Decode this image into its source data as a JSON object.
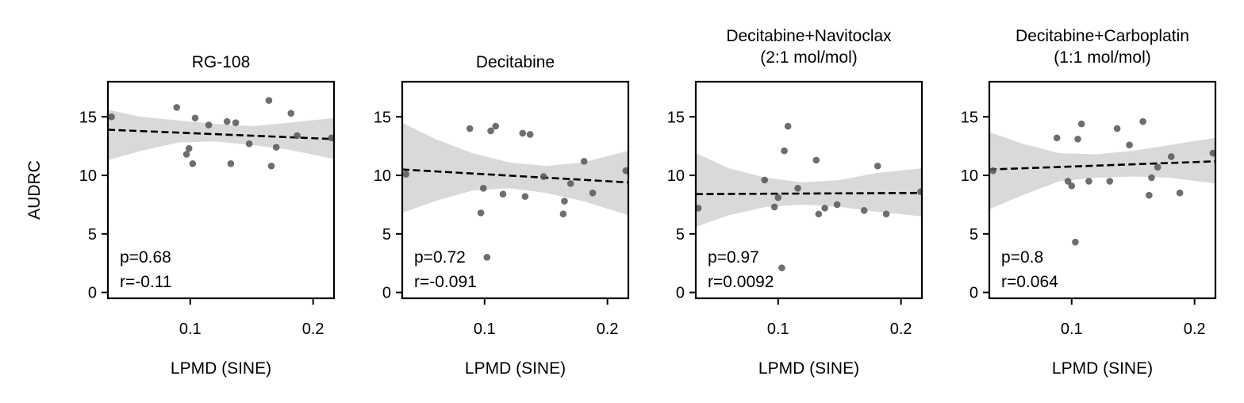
{
  "colors": {
    "points": "#555555",
    "band": "#d9d9d9",
    "fit_line": "#000000",
    "axes": "#000000"
  },
  "chart_data": [
    {
      "type": "scatter",
      "title": "RG-108",
      "xlabel": "LPMD (SINE)",
      "ylabel": "AUDRC",
      "xlim": [
        0.033,
        0.217
      ],
      "ylim": [
        -0.5,
        18
      ],
      "xticks": [
        {
          "v": 0.1,
          "label": "0.1"
        },
        {
          "v": 0.2,
          "label": "0.2"
        }
      ],
      "yticks": [
        {
          "v": 0,
          "label": "0"
        },
        {
          "v": 5,
          "label": "5"
        },
        {
          "v": 10,
          "label": "10"
        },
        {
          "v": 15,
          "label": "15"
        }
      ],
      "points": [
        {
          "x": 0.036,
          "y": 15.0
        },
        {
          "x": 0.089,
          "y": 15.8
        },
        {
          "x": 0.097,
          "y": 11.8
        },
        {
          "x": 0.099,
          "y": 12.3
        },
        {
          "x": 0.102,
          "y": 11.0
        },
        {
          "x": 0.104,
          "y": 14.9
        },
        {
          "x": 0.115,
          "y": 14.3
        },
        {
          "x": 0.13,
          "y": 14.6
        },
        {
          "x": 0.133,
          "y": 11.0
        },
        {
          "x": 0.137,
          "y": 14.5
        },
        {
          "x": 0.148,
          "y": 12.7
        },
        {
          "x": 0.164,
          "y": 16.4
        },
        {
          "x": 0.166,
          "y": 10.8
        },
        {
          "x": 0.17,
          "y": 12.4
        },
        {
          "x": 0.182,
          "y": 15.3
        },
        {
          "x": 0.187,
          "y": 13.4
        },
        {
          "x": 0.215,
          "y": 13.2
        }
      ],
      "fit": {
        "x0": 0.033,
        "y0": 13.9,
        "x1": 0.217,
        "y1": 13.1
      },
      "band": [
        {
          "x": 0.033,
          "lo": 11.3,
          "hi": 15.6
        },
        {
          "x": 0.06,
          "lo": 12.1,
          "hi": 15.0
        },
        {
          "x": 0.09,
          "lo": 12.8,
          "hi": 14.7
        },
        {
          "x": 0.12,
          "lo": 12.9,
          "hi": 14.4
        },
        {
          "x": 0.15,
          "lo": 12.6,
          "hi": 14.2
        },
        {
          "x": 0.18,
          "lo": 12.2,
          "hi": 14.5
        },
        {
          "x": 0.217,
          "lo": 11.4,
          "hi": 14.9
        }
      ],
      "p": "p=0.68",
      "r": "r=-0.11"
    },
    {
      "type": "scatter",
      "title": "Decitabine",
      "xlabel": "LPMD (SINE)",
      "ylabel": "",
      "xlim": [
        0.033,
        0.217
      ],
      "ylim": [
        -0.5,
        18
      ],
      "xticks": [
        {
          "v": 0.1,
          "label": "0.1"
        },
        {
          "v": 0.2,
          "label": "0.2"
        }
      ],
      "yticks": [
        {
          "v": 0,
          "label": "0"
        },
        {
          "v": 5,
          "label": "5"
        },
        {
          "v": 10,
          "label": "10"
        },
        {
          "v": 15,
          "label": "15"
        }
      ],
      "points": [
        {
          "x": 0.036,
          "y": 10.1
        },
        {
          "x": 0.088,
          "y": 14.0
        },
        {
          "x": 0.097,
          "y": 6.8
        },
        {
          "x": 0.099,
          "y": 8.9
        },
        {
          "x": 0.102,
          "y": 3.0
        },
        {
          "x": 0.105,
          "y": 13.8
        },
        {
          "x": 0.109,
          "y": 14.2
        },
        {
          "x": 0.115,
          "y": 8.4
        },
        {
          "x": 0.131,
          "y": 13.6
        },
        {
          "x": 0.133,
          "y": 8.2
        },
        {
          "x": 0.137,
          "y": 13.5
        },
        {
          "x": 0.148,
          "y": 9.9
        },
        {
          "x": 0.164,
          "y": 6.7
        },
        {
          "x": 0.165,
          "y": 7.8
        },
        {
          "x": 0.17,
          "y": 9.3
        },
        {
          "x": 0.181,
          "y": 11.2
        },
        {
          "x": 0.188,
          "y": 8.5
        },
        {
          "x": 0.215,
          "y": 10.4
        }
      ],
      "fit": {
        "x0": 0.033,
        "y0": 10.5,
        "x1": 0.217,
        "y1": 9.4
      },
      "band": [
        {
          "x": 0.033,
          "lo": 6.8,
          "hi": 14.5
        },
        {
          "x": 0.06,
          "lo": 7.8,
          "hi": 13.1
        },
        {
          "x": 0.09,
          "lo": 8.7,
          "hi": 11.9
        },
        {
          "x": 0.12,
          "lo": 8.9,
          "hi": 11.1
        },
        {
          "x": 0.15,
          "lo": 8.5,
          "hi": 10.8
        },
        {
          "x": 0.18,
          "lo": 7.8,
          "hi": 11.1
        },
        {
          "x": 0.217,
          "lo": 6.6,
          "hi": 12.1
        }
      ],
      "p": "p=0.72",
      "r": "r=-0.091"
    },
    {
      "type": "scatter",
      "title": "Decitabine+Navitoclax\n(2:1 mol/mol)",
      "xlabel": "LPMD (SINE)",
      "ylabel": "",
      "xlim": [
        0.033,
        0.217
      ],
      "ylim": [
        -0.5,
        18
      ],
      "xticks": [
        {
          "v": 0.1,
          "label": "0.1"
        },
        {
          "v": 0.2,
          "label": "0.2"
        }
      ],
      "yticks": [
        {
          "v": 0,
          "label": "0"
        },
        {
          "v": 5,
          "label": "5"
        },
        {
          "v": 10,
          "label": "10"
        },
        {
          "v": 15,
          "label": "15"
        }
      ],
      "points": [
        {
          "x": 0.035,
          "y": 7.2
        },
        {
          "x": 0.089,
          "y": 9.6
        },
        {
          "x": 0.097,
          "y": 7.3
        },
        {
          "x": 0.1,
          "y": 8.1
        },
        {
          "x": 0.103,
          "y": 2.1
        },
        {
          "x": 0.105,
          "y": 12.1
        },
        {
          "x": 0.108,
          "y": 14.2
        },
        {
          "x": 0.116,
          "y": 8.9
        },
        {
          "x": 0.131,
          "y": 11.3
        },
        {
          "x": 0.133,
          "y": 6.7
        },
        {
          "x": 0.138,
          "y": 7.2
        },
        {
          "x": 0.148,
          "y": 7.5
        },
        {
          "x": 0.17,
          "y": 7.0
        },
        {
          "x": 0.181,
          "y": 10.8
        },
        {
          "x": 0.188,
          "y": 6.7
        },
        {
          "x": 0.216,
          "y": 8.6
        }
      ],
      "fit": {
        "x0": 0.033,
        "y0": 8.4,
        "x1": 0.217,
        "y1": 8.5
      },
      "band": [
        {
          "x": 0.033,
          "lo": 5.6,
          "hi": 11.9
        },
        {
          "x": 0.06,
          "lo": 6.6,
          "hi": 10.6
        },
        {
          "x": 0.09,
          "lo": 7.3,
          "hi": 9.8
        },
        {
          "x": 0.12,
          "lo": 7.5,
          "hi": 9.4
        },
        {
          "x": 0.15,
          "lo": 7.3,
          "hi": 9.6
        },
        {
          "x": 0.18,
          "lo": 6.9,
          "hi": 10.2
        },
        {
          "x": 0.217,
          "lo": 6.5,
          "hi": 10.6
        }
      ],
      "p": "p=0.97",
      "r": "r=0.0092"
    },
    {
      "type": "scatter",
      "title": "Decitabine+Carboplatin\n(1:1 mol/mol)",
      "xlabel": "LPMD (SINE)",
      "ylabel": "",
      "xlim": [
        0.033,
        0.217
      ],
      "ylim": [
        -0.5,
        18
      ],
      "xticks": [
        {
          "v": 0.1,
          "label": "0.1"
        },
        {
          "v": 0.2,
          "label": "0.2"
        }
      ],
      "yticks": [
        {
          "v": 0,
          "label": "0"
        },
        {
          "v": 5,
          "label": "5"
        },
        {
          "v": 10,
          "label": "10"
        },
        {
          "v": 15,
          "label": "15"
        }
      ],
      "points": [
        {
          "x": 0.036,
          "y": 10.4
        },
        {
          "x": 0.088,
          "y": 13.2
        },
        {
          "x": 0.097,
          "y": 9.5
        },
        {
          "x": 0.1,
          "y": 9.1
        },
        {
          "x": 0.103,
          "y": 4.3
        },
        {
          "x": 0.105,
          "y": 13.1
        },
        {
          "x": 0.108,
          "y": 14.4
        },
        {
          "x": 0.114,
          "y": 9.5
        },
        {
          "x": 0.131,
          "y": 9.5
        },
        {
          "x": 0.137,
          "y": 14.0
        },
        {
          "x": 0.147,
          "y": 12.6
        },
        {
          "x": 0.158,
          "y": 14.6
        },
        {
          "x": 0.163,
          "y": 8.3
        },
        {
          "x": 0.165,
          "y": 9.8
        },
        {
          "x": 0.17,
          "y": 10.7
        },
        {
          "x": 0.181,
          "y": 11.6
        },
        {
          "x": 0.188,
          "y": 8.5
        },
        {
          "x": 0.215,
          "y": 11.9
        }
      ],
      "fit": {
        "x0": 0.033,
        "y0": 10.5,
        "x1": 0.217,
        "y1": 11.2
      },
      "band": [
        {
          "x": 0.033,
          "lo": 7.1,
          "hi": 13.7
        },
        {
          "x": 0.06,
          "lo": 8.3,
          "hi": 12.7
        },
        {
          "x": 0.09,
          "lo": 9.5,
          "hi": 11.9
        },
        {
          "x": 0.12,
          "lo": 9.8,
          "hi": 11.8
        },
        {
          "x": 0.15,
          "lo": 9.9,
          "hi": 12.1
        },
        {
          "x": 0.18,
          "lo": 9.8,
          "hi": 12.6
        },
        {
          "x": 0.217,
          "lo": 9.3,
          "hi": 13.2
        }
      ],
      "p": "p=0.8",
      "r": "r=0.064"
    }
  ]
}
